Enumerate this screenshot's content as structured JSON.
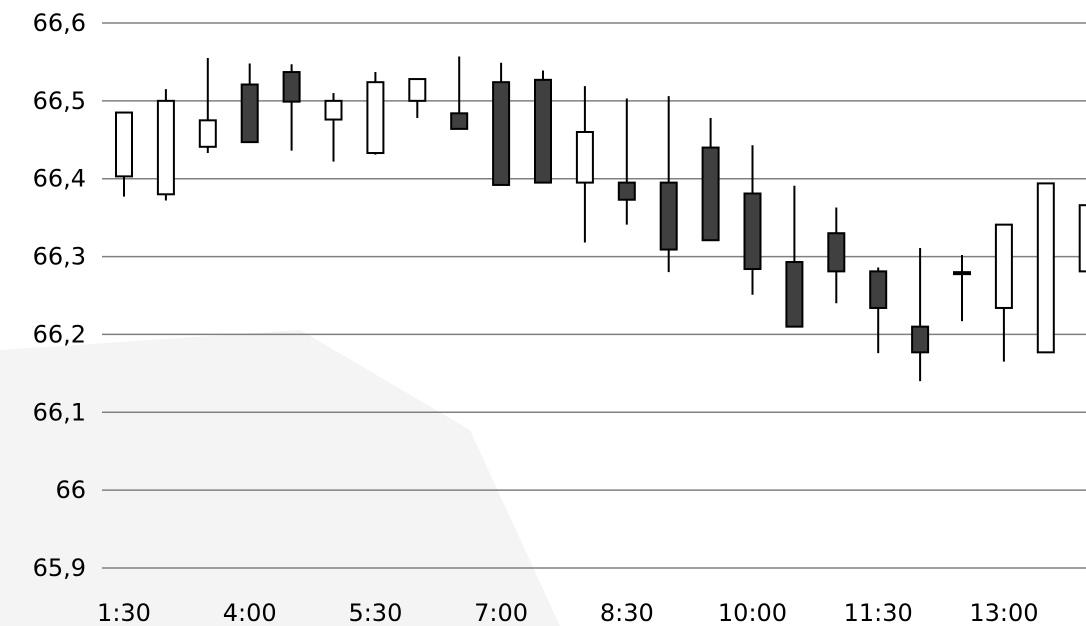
{
  "chart_data": {
    "type": "candlestick",
    "title": "",
    "xlabel": "",
    "ylabel": "",
    "ylim": [
      65.9,
      66.6
    ],
    "grid": true,
    "legend": "none",
    "y_ticks": [
      "66,6",
      "66,5",
      "66,4",
      "66,3",
      "66,2",
      "66,1",
      "66",
      "65,9"
    ],
    "y_tick_values": [
      66.6,
      66.5,
      66.4,
      66.3,
      66.2,
      66.1,
      66.0,
      65.9
    ],
    "x_ticks": [
      "1:30",
      "4:00",
      "5:30",
      "7:00",
      "8:30",
      "10:00",
      "11:30",
      "13:00"
    ],
    "x_tick_candle_index": [
      0,
      3,
      6,
      9,
      12,
      15,
      18,
      21
    ],
    "colors": {
      "up": "#ffffff",
      "down": "#404040",
      "outline": "#000000",
      "grid": "#808080",
      "background_shade": "#f0f0f0"
    },
    "candles": [
      {
        "open": 66.403,
        "high": 66.485,
        "low": 66.377,
        "close": 66.485
      },
      {
        "open": 66.38,
        "high": 66.515,
        "low": 66.372,
        "close": 66.5
      },
      {
        "open": 66.441,
        "high": 66.555,
        "low": 66.433,
        "close": 66.475
      },
      {
        "open": 66.521,
        "high": 66.548,
        "low": 66.447,
        "close": 66.447
      },
      {
        "open": 66.537,
        "high": 66.547,
        "low": 66.436,
        "close": 66.499
      },
      {
        "open": 66.476,
        "high": 66.51,
        "low": 66.422,
        "close": 66.5
      },
      {
        "open": 66.433,
        "high": 66.537,
        "low": 66.431,
        "close": 66.524
      },
      {
        "open": 66.5,
        "high": 66.528,
        "low": 66.478,
        "close": 66.528
      },
      {
        "open": 66.484,
        "high": 66.557,
        "low": 66.464,
        "close": 66.464
      },
      {
        "open": 66.524,
        "high": 66.549,
        "low": 66.392,
        "close": 66.392
      },
      {
        "open": 66.527,
        "high": 66.539,
        "low": 66.395,
        "close": 66.395
      },
      {
        "open": 66.395,
        "high": 66.519,
        "low": 66.318,
        "close": 66.46
      },
      {
        "open": 66.395,
        "high": 66.503,
        "low": 66.341,
        "close": 66.373
      },
      {
        "open": 66.395,
        "high": 66.506,
        "low": 66.28,
        "close": 66.309
      },
      {
        "open": 66.44,
        "high": 66.478,
        "low": 66.321,
        "close": 66.321
      },
      {
        "open": 66.381,
        "high": 66.443,
        "low": 66.251,
        "close": 66.284
      },
      {
        "open": 66.293,
        "high": 66.391,
        "low": 66.21,
        "close": 66.21
      },
      {
        "open": 66.33,
        "high": 66.363,
        "low": 66.24,
        "close": 66.281
      },
      {
        "open": 66.281,
        "high": 66.286,
        "low": 66.176,
        "close": 66.234
      },
      {
        "open": 66.21,
        "high": 66.311,
        "low": 66.14,
        "close": 66.177
      },
      {
        "open": 66.28,
        "high": 66.302,
        "low": 66.217,
        "close": 66.28
      },
      {
        "open": 66.234,
        "high": 66.341,
        "low": 66.165,
        "close": 66.341
      },
      {
        "open": 66.177,
        "high": 66.394,
        "low": 66.176,
        "close": 66.394
      },
      {
        "open": 66.281,
        "high": 66.366,
        "low": 66.266,
        "close": 66.366
      }
    ]
  }
}
